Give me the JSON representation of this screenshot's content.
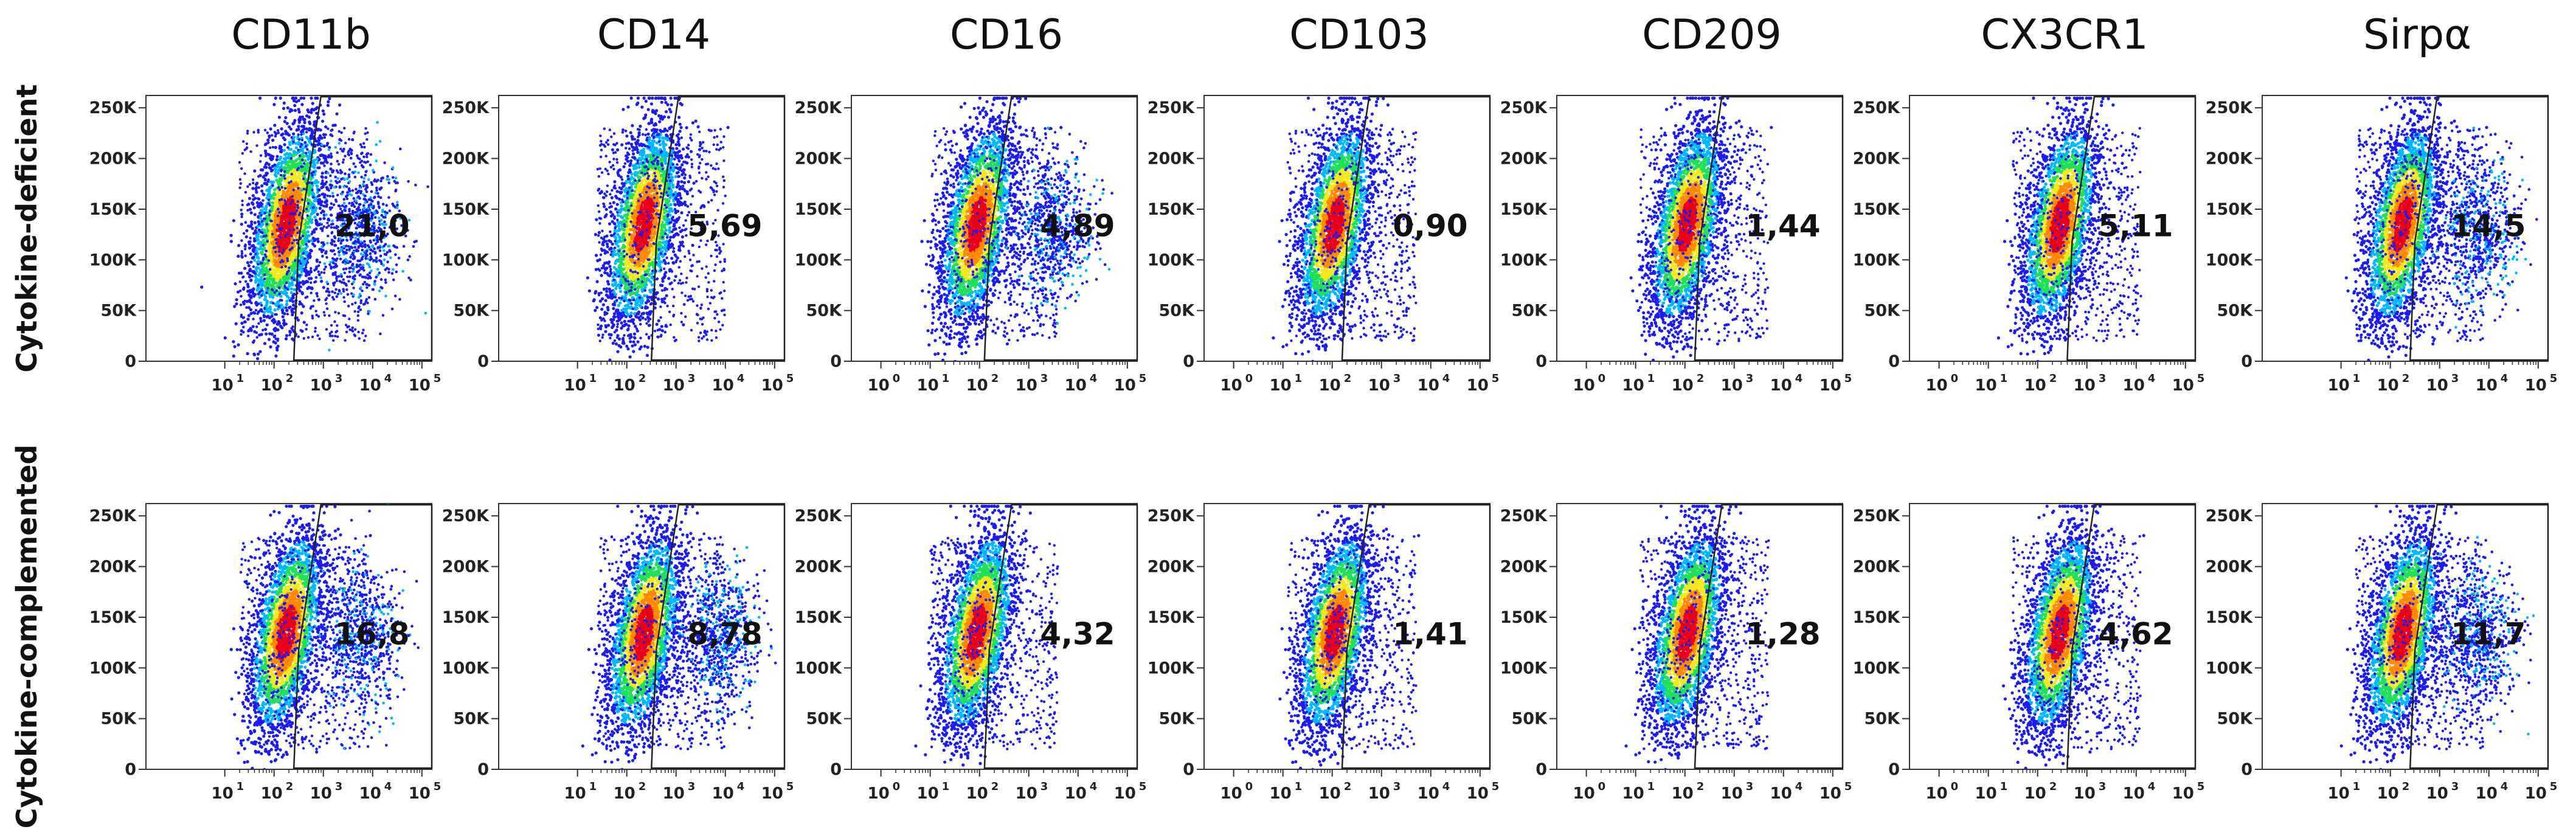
{
  "chart_data": {
    "type": "scatter",
    "subtype": "flow-cytometry-density-plot-grid",
    "columns": [
      "CD11b",
      "CD14",
      "CD16",
      "CD103",
      "CD209",
      "CX3CR1",
      "Sirpα"
    ],
    "rows": [
      "Cytokine-deficient",
      "Cytokine-complemented"
    ],
    "y_axis": {
      "ticks": [
        "0",
        "50K",
        "100K",
        "150K",
        "200K",
        "250K"
      ],
      "tick_values": [
        0,
        50000,
        100000,
        150000,
        200000,
        250000
      ],
      "ylim": [
        0,
        262144
      ]
    },
    "x_axis": {
      "scale": "log",
      "tick_base": "10",
      "ticks_default": [
        "1",
        "2",
        "3",
        "4",
        "5"
      ],
      "ticks_extended": [
        "0",
        "1",
        "2",
        "3",
        "4",
        "5"
      ],
      "panels_with_extended_ticks": [
        "CD16",
        "CD103",
        "CD209",
        "CX3CR1"
      ]
    },
    "gate_percentages": [
      [
        "21,0",
        "5,69",
        "4,89",
        "0,90",
        "1,44",
        "5,11",
        "14,5"
      ],
      [
        "16,8",
        "8,78",
        "4,32",
        "1,41",
        "1,28",
        "4,62",
        "11,7"
      ]
    ],
    "population_center_log10": [
      [
        2.2,
        2.3,
        1.9,
        2.0,
        2.0,
        2.4,
        2.2
      ],
      [
        2.2,
        2.3,
        1.9,
        2.0,
        2.0,
        2.4,
        2.2
      ]
    ],
    "secondary_population": [
      [
        true,
        false,
        true,
        false,
        false,
        false,
        true
      ],
      [
        true,
        true,
        false,
        false,
        false,
        false,
        true
      ]
    ],
    "density_colors": [
      "#1b1bf2",
      "#00b8ff",
      "#20e05a",
      "#f0ea1c",
      "#ff8a00",
      "#e8001a"
    ]
  }
}
